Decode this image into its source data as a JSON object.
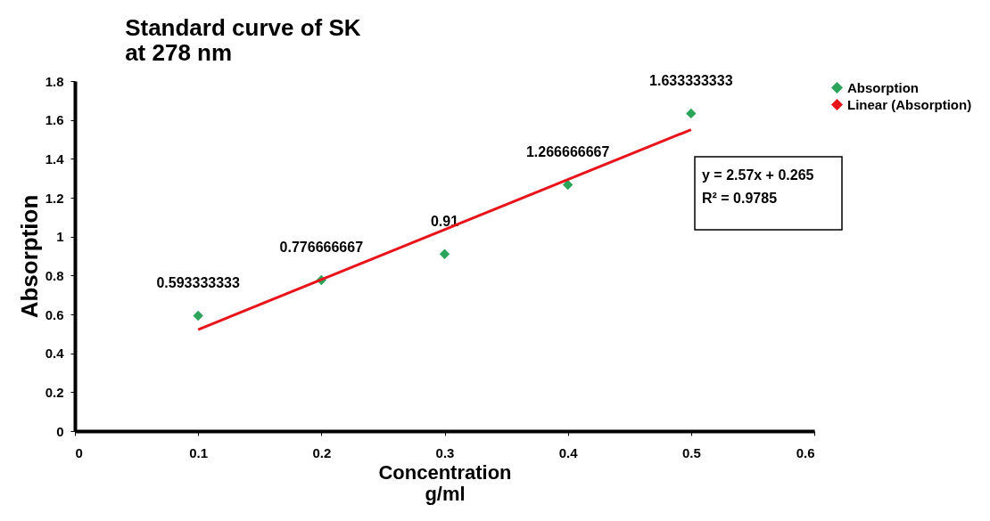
{
  "chart_data": {
    "type": "scatter",
    "title": [
      "Standard curve of SK",
      "at 278 nm"
    ],
    "xlabel": [
      "Concentration",
      "g/ml"
    ],
    "ylabel": "Absorption",
    "x": [
      0.1,
      0.2,
      0.3,
      0.4,
      0.5
    ],
    "series": [
      {
        "name": "Absorption",
        "type": "scatter",
        "color": "#2aa55a",
        "marker": "diamond",
        "values": [
          0.593333333,
          0.776666667,
          0.91,
          1.266666667,
          1.633333333
        ],
        "value_labels": [
          "0.593333333",
          "0.776666667",
          "0.91",
          "1.266666667",
          "1.633333333"
        ]
      },
      {
        "name": "Linear (Absorption)",
        "type": "line",
        "color": "#e8141b",
        "x": [
          0.1,
          0.5
        ],
        "values": [
          0.522,
          1.55
        ]
      }
    ],
    "annotations": [
      "y = 2.57x + 0.265",
      "R² = 0.9785"
    ],
    "xlim": [
      0,
      0.6
    ],
    "xticks": [
      0,
      0.1,
      0.2,
      0.3,
      0.4,
      0.5,
      0.6
    ],
    "ylim": [
      0,
      1.8
    ],
    "yticks": [
      0,
      0.2,
      0.4,
      0.6,
      0.8,
      1,
      1.2,
      1.4,
      1.6,
      1.8
    ],
    "grid": false,
    "legend": "right"
  }
}
